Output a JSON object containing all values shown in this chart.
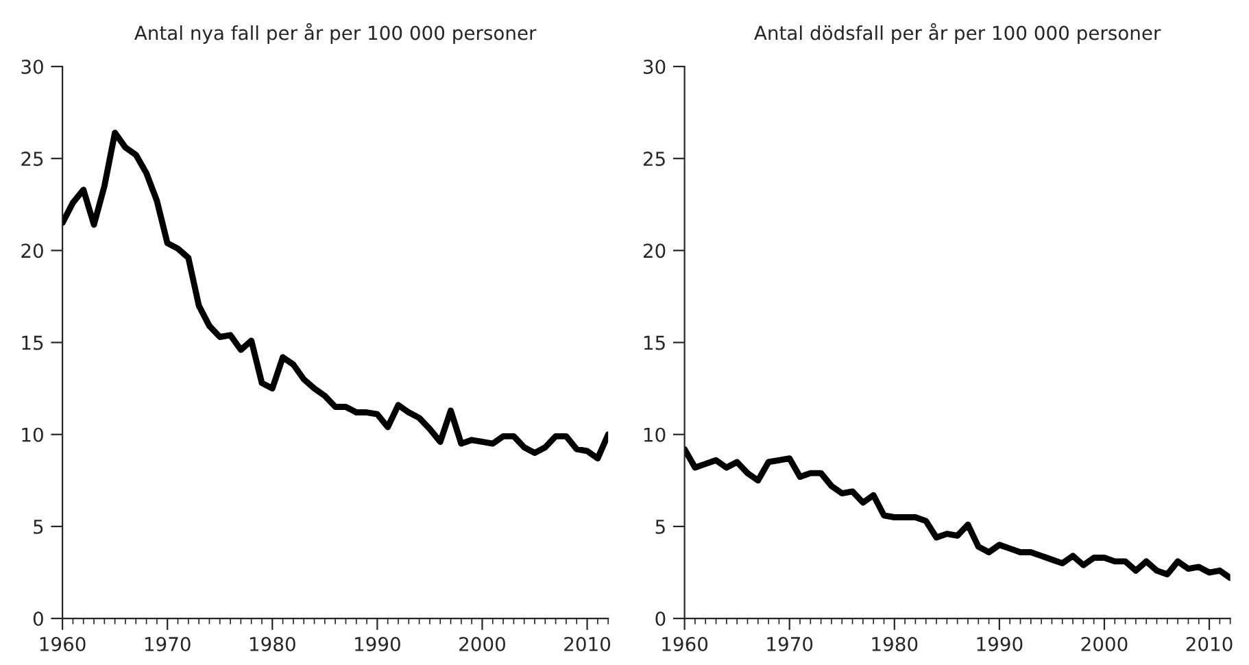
{
  "chart_data": [
    {
      "type": "line",
      "title": "Antal nya fall per år per 100 000 personer",
      "x": [
        1960,
        1961,
        1962,
        1963,
        1964,
        1965,
        1966,
        1967,
        1968,
        1969,
        1970,
        1971,
        1972,
        1973,
        1974,
        1975,
        1976,
        1977,
        1978,
        1979,
        1980,
        1981,
        1982,
        1983,
        1984,
        1985,
        1986,
        1987,
        1988,
        1989,
        1990,
        1991,
        1992,
        1993,
        1994,
        1995,
        1996,
        1997,
        1998,
        1999,
        2000,
        2001,
        2002,
        2003,
        2004,
        2005,
        2006,
        2007,
        2008,
        2009,
        2010,
        2011,
        2012
      ],
      "series": [
        {
          "color": "#000000",
          "values": [
            21.5,
            22.6,
            23.3,
            21.4,
            23.5,
            26.4,
            25.6,
            25.2,
            24.2,
            22.7,
            20.4,
            20.1,
            19.6,
            17.0,
            15.9,
            15.3,
            15.4,
            14.6,
            15.1,
            12.8,
            12.5,
            14.2,
            13.8,
            13.0,
            12.5,
            12.1,
            11.5,
            11.5,
            11.2,
            11.2,
            11.1,
            10.4,
            11.6,
            11.2,
            10.9,
            10.3,
            9.6,
            11.3,
            9.5,
            9.7,
            9.6,
            9.5,
            9.9,
            9.9,
            9.3,
            9.0,
            9.3,
            9.9,
            9.9,
            9.2,
            9.1,
            8.7,
            10.0
          ]
        }
      ],
      "xlim": [
        1960,
        2012
      ],
      "xticks": [
        1960,
        1970,
        1980,
        1990,
        2000,
        2010
      ],
      "ylim": [
        0,
        30
      ],
      "yticks": [
        0,
        5,
        10,
        15,
        20,
        25,
        30
      ],
      "grid": false,
      "marker": "none",
      "line_style": "solid"
    },
    {
      "type": "line",
      "title": "Antal dödsfall per år per 100 000 personer",
      "x": [
        1960,
        1961,
        1962,
        1963,
        1964,
        1965,
        1966,
        1967,
        1968,
        1969,
        1970,
        1971,
        1972,
        1973,
        1974,
        1975,
        1976,
        1977,
        1978,
        1979,
        1980,
        1981,
        1982,
        1983,
        1984,
        1985,
        1986,
        1987,
        1988,
        1989,
        1990,
        1991,
        1992,
        1993,
        1994,
        1995,
        1996,
        1997,
        1998,
        1999,
        2000,
        2001,
        2002,
        2003,
        2004,
        2005,
        2006,
        2007,
        2008,
        2009,
        2010,
        2011,
        2012
      ],
      "series": [
        {
          "color": "#000000",
          "values": [
            9.2,
            8.2,
            8.4,
            8.6,
            8.2,
            8.5,
            7.9,
            7.5,
            8.5,
            8.6,
            8.7,
            7.7,
            7.9,
            7.9,
            7.2,
            6.8,
            6.9,
            6.3,
            6.7,
            5.6,
            5.5,
            5.5,
            5.5,
            5.3,
            4.4,
            4.6,
            4.5,
            5.1,
            3.9,
            3.6,
            4.0,
            3.8,
            3.6,
            3.6,
            3.4,
            3.2,
            3.0,
            3.4,
            2.9,
            3.3,
            3.3,
            3.1,
            3.1,
            2.6,
            3.1,
            2.6,
            2.4,
            3.1,
            2.7,
            2.8,
            2.5,
            2.6,
            2.2
          ]
        }
      ],
      "xlim": [
        1960,
        2012
      ],
      "xticks": [
        1960,
        1970,
        1980,
        1990,
        2000,
        2010
      ],
      "ylim": [
        0,
        30
      ],
      "yticks": [
        0,
        5,
        10,
        15,
        20,
        25,
        30
      ],
      "grid": false,
      "marker": "none",
      "line_style": "solid"
    }
  ]
}
